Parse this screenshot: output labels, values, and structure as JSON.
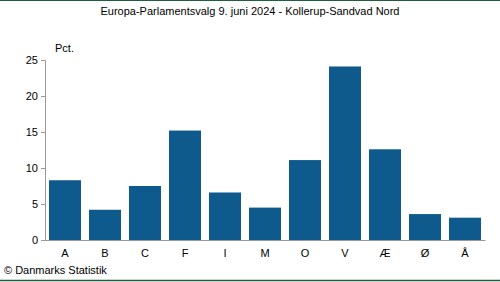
{
  "chart_data": {
    "type": "bar",
    "title": "Europa-Parlamentsvalg 9. juni 2024 - Kollerup-Sandvad Nord",
    "y_label": "Pct.",
    "source": "© Danmarks Statistik",
    "categories": [
      "A",
      "B",
      "C",
      "F",
      "I",
      "M",
      "O",
      "V",
      "Æ",
      "Ø",
      "Å"
    ],
    "values": [
      8.3,
      4.2,
      7.5,
      15.2,
      6.6,
      4.5,
      11.1,
      24.1,
      12.6,
      3.6,
      3.1
    ],
    "color": "#0f5a8c",
    "ylim": [
      0,
      25
    ],
    "yticks": [
      0,
      5,
      10,
      15,
      20,
      25
    ],
    "grid": false
  }
}
